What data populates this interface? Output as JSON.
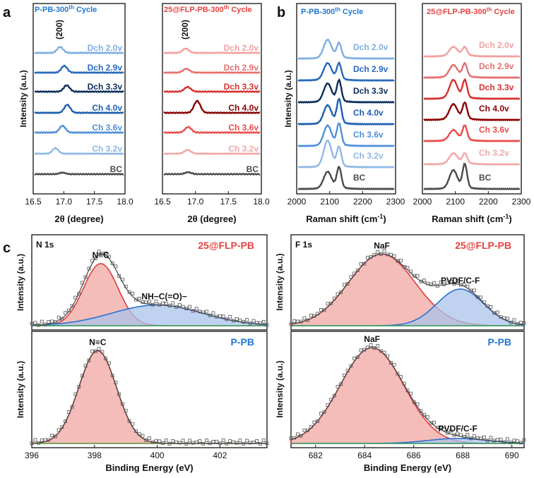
{
  "panel_labels": {
    "a": "a",
    "b": "b",
    "c": "c"
  },
  "colors": {
    "P-PB": [
      "#4a4a4a",
      "#8fb8e6",
      "#4f8fdb",
      "#1f5fb0",
      "#0c2d5c",
      "#2868bd",
      "#7eaee3"
    ],
    "FLP": [
      "#4a4a4a",
      "#f0a8a8",
      "#e84c4c",
      "#8b0000",
      "#d93030",
      "#e66e6e",
      "#f2a0a0"
    ],
    "title_blue": "#1f78d1",
    "title_red": "#e5423f"
  },
  "chart_data": [
    {
      "type": "line",
      "panel": "a",
      "title": "P-PB-300th Cycle",
      "xlabel": "2θ (degree)",
      "ylabel": "Intensity (a.u.)",
      "xlim": [
        16.5,
        18.0
      ],
      "xticks": [
        "16.5",
        "17.0",
        "17.5",
        "18.0"
      ],
      "peak_label": "(200)",
      "series": [
        {
          "name": "BC",
          "peak": 16.97,
          "height": 0.18
        },
        {
          "name": "Ch 3.2v",
          "peak": 16.85,
          "height": 0.65
        },
        {
          "name": "Ch 3.6v",
          "peak": 16.97,
          "height": 0.8
        },
        {
          "name": "Ch 4.0v",
          "peak": 17.05,
          "height": 0.95
        },
        {
          "name": "Dch 3.3v",
          "peak": 17.04,
          "height": 0.75
        },
        {
          "name": "Dch 2.9v",
          "peak": 17.0,
          "height": 0.8
        },
        {
          "name": "Dch 2.0v",
          "peak": 16.93,
          "height": 0.7
        }
      ]
    },
    {
      "type": "line",
      "panel": "a",
      "title": "25@FLP-PB-300th Cycle",
      "xlabel": "2θ (degree)",
      "ylabel": "",
      "xlim": [
        16.5,
        18.0
      ],
      "xticks": [
        "16.5",
        "17.0",
        "17.5",
        "18.0"
      ],
      "peak_label": "(200)",
      "series": [
        {
          "name": "BC",
          "peak": 16.88,
          "height": 0.22
        },
        {
          "name": "Ch 3.2v",
          "peak": 16.87,
          "height": 0.45
        },
        {
          "name": "Ch 3.6v",
          "peak": 16.88,
          "height": 0.65
        },
        {
          "name": "Ch 4.0v",
          "peak": 17.02,
          "height": 1.4
        },
        {
          "name": "Dch 3.3v",
          "peak": 16.87,
          "height": 0.55
        },
        {
          "name": "Dch 2.9v",
          "peak": 16.85,
          "height": 0.45
        },
        {
          "name": "Dch 2.0v",
          "peak": 16.84,
          "height": 0.5
        }
      ]
    },
    {
      "type": "line",
      "panel": "b",
      "title": "P-PB-300th Cycle",
      "xlabel": "Raman shift (cm-1)",
      "ylabel": "Intensity (a.u.)",
      "xlim": [
        2000,
        2300
      ],
      "xticks": [
        "2000",
        "2100",
        "2200",
        "2300"
      ],
      "series": [
        {
          "name": "BC",
          "h1": 1.0,
          "h2": 1.3
        },
        {
          "name": "Ch 3.2v",
          "h1": 1.6,
          "h2": 1.2
        },
        {
          "name": "Ch 3.6v",
          "h1": 1.2,
          "h2": 1.35
        },
        {
          "name": "Ch 4.0v",
          "h1": 1.1,
          "h2": 1.5
        },
        {
          "name": "Dch 3.3v",
          "h1": 1.1,
          "h2": 1.3
        },
        {
          "name": "Dch 2.9v",
          "h1": 1.0,
          "h2": 1.0
        },
        {
          "name": "Dch 2.0v",
          "h1": 1.1,
          "h2": 0.9
        }
      ]
    },
    {
      "type": "line",
      "panel": "b",
      "title": "25@FLP-PB-300th Cycle",
      "xlabel": "Raman shift (cm-1)",
      "ylabel": "",
      "xlim": [
        2000,
        2300
      ],
      "xticks": [
        "2000",
        "2100",
        "2200",
        "2300"
      ],
      "series": [
        {
          "name": "BC",
          "h1": 1.1,
          "h2": 1.5
        },
        {
          "name": "Ch 3.2v",
          "h1": 0.6,
          "h2": 0.6
        },
        {
          "name": "Ch 3.6v",
          "h1": 0.6,
          "h2": 0.9
        },
        {
          "name": "Ch 4.0v",
          "h1": 0.9,
          "h2": 1.0
        },
        {
          "name": "Dch 3.3v",
          "h1": 1.1,
          "h2": 1.1
        },
        {
          "name": "Dch 2.9v",
          "h1": 0.7,
          "h2": 0.8
        },
        {
          "name": "Dch 2.0v",
          "h1": 0.5,
          "h2": 0.5
        }
      ]
    },
    {
      "type": "scatter",
      "panel": "c",
      "title": "N 1s",
      "sample": "25@FLP-PB",
      "xlabel": "",
      "ylabel": "Intensity (a.u.)",
      "xlim": [
        396,
        403.5
      ],
      "components": [
        {
          "name": "N≡C",
          "center": 398.2,
          "sigma": 0.55,
          "amp": 0.78
        },
        {
          "name": "NH−C(=O)−",
          "center": 400.0,
          "sigma": 1.45,
          "amp": 0.26
        }
      ]
    },
    {
      "type": "scatter",
      "panel": "c",
      "title": "",
      "sample": "P-PB",
      "xlabel": "Binding Energy (eV)",
      "ylabel": "Intensity (a.u.)",
      "xlim": [
        396,
        403.5
      ],
      "xticks": [
        "396",
        "398",
        "400",
        "402"
      ],
      "components": [
        {
          "name": "N≡C",
          "center": 398.1,
          "sigma": 0.6,
          "amp": 0.92
        }
      ]
    },
    {
      "type": "scatter",
      "panel": "c",
      "title": "F 1s",
      "sample": "25@FLP-PB",
      "xlabel": "",
      "ylabel": "",
      "xlim": [
        681,
        690.5
      ],
      "components": [
        {
          "name": "NaF",
          "center": 684.7,
          "sigma": 1.35,
          "amp": 0.9
        },
        {
          "name": "PVDF/C-F",
          "center": 687.9,
          "sigma": 0.95,
          "amp": 0.46
        }
      ]
    },
    {
      "type": "scatter",
      "panel": "c",
      "title": "",
      "sample": "P-PB",
      "xlabel": "Binding Energy (eV)",
      "ylabel": "",
      "xlim": [
        681,
        690.5
      ],
      "xticks": [
        "682",
        "684",
        "686",
        "688",
        "690"
      ],
      "components": [
        {
          "name": "NaF",
          "center": 684.3,
          "sigma": 1.3,
          "amp": 0.95
        },
        {
          "name": "PVDF/C-F",
          "center": 687.8,
          "sigma": 1.2,
          "amp": 0.05
        }
      ]
    }
  ]
}
